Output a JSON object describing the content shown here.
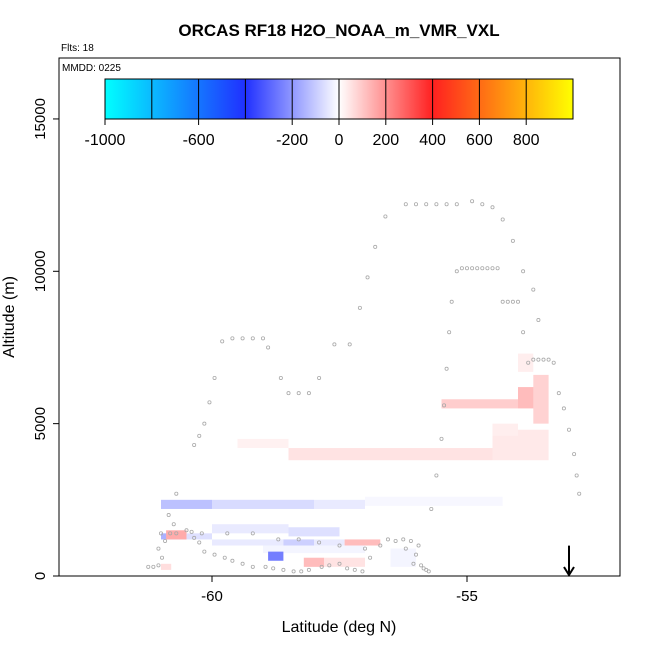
{
  "chart_data": {
    "type": "heatmap",
    "title": "ORCAS RF18 H2O_NOAA_m_VMR_VXL",
    "flights_label": "Flts: 18",
    "date_label": "MMDD: 0225",
    "xlabel": "Latitude (deg N)",
    "ylabel": "Altitude (m)",
    "xlim": [
      -63,
      -52
    ],
    "ylim": [
      0,
      17000
    ],
    "x_ticks": [
      {
        "value": -60,
        "label": "-60"
      },
      {
        "value": -55,
        "label": "-55"
      }
    ],
    "y_ticks": [
      {
        "value": 0,
        "label": "0"
      },
      {
        "value": 5000,
        "label": "5000"
      },
      {
        "value": 10000,
        "label": "10000"
      },
      {
        "value": 15000,
        "label": "15000"
      }
    ],
    "colorbar": {
      "range": [
        -1000,
        1000
      ],
      "stops": [
        {
          "value": -1000,
          "color": "#00ffff"
        },
        {
          "value": -400,
          "color": "#2030ff"
        },
        {
          "value": 0,
          "color": "#ffffff"
        },
        {
          "value": 400,
          "color": "#ff2020"
        },
        {
          "value": 1000,
          "color": "#ffff00"
        }
      ],
      "dividers": [
        -800,
        -600,
        -400,
        -200,
        0,
        200,
        400,
        600,
        800
      ],
      "tick_labels": [
        {
          "value": -1000,
          "label": "-1000"
        },
        {
          "value": -600,
          "label": "-600"
        },
        {
          "value": -200,
          "label": "-200"
        },
        {
          "value": 0,
          "label": "0"
        },
        {
          "value": 200,
          "label": "200"
        },
        {
          "value": 400,
          "label": "400"
        },
        {
          "value": 600,
          "label": "600"
        },
        {
          "value": 800,
          "label": "800"
        }
      ]
    },
    "cells": [
      {
        "lat0": -61.0,
        "lat1": -60.0,
        "alt0": 2200,
        "alt1": 2500,
        "value": -120
      },
      {
        "lat0": -60.0,
        "lat1": -58.0,
        "alt0": 2200,
        "alt1": 2500,
        "value": -70
      },
      {
        "lat0": -58.0,
        "lat1": -57.0,
        "alt0": 2200,
        "alt1": 2500,
        "value": -40
      },
      {
        "lat0": -57.0,
        "lat1": -54.3,
        "alt0": 2300,
        "alt1": 2600,
        "value": -15
      },
      {
        "lat0": -60.0,
        "lat1": -58.5,
        "alt0": 1400,
        "alt1": 1700,
        "value": -40
      },
      {
        "lat0": -58.5,
        "lat1": -57.5,
        "alt0": 1300,
        "alt1": 1600,
        "value": -60
      },
      {
        "lat0": -61.0,
        "lat1": -60.5,
        "alt0": 1200,
        "alt1": 1400,
        "value": -150
      },
      {
        "lat0": -60.9,
        "lat1": -60.5,
        "alt0": 1200,
        "alt1": 1500,
        "value": 150
      },
      {
        "lat0": -60.5,
        "lat1": -60.0,
        "alt0": 1200,
        "alt1": 1400,
        "value": -60
      },
      {
        "lat0": -60.0,
        "lat1": -58.6,
        "alt0": 1000,
        "alt1": 1200,
        "value": -40
      },
      {
        "lat0": -58.6,
        "lat1": -58.0,
        "alt0": 1000,
        "alt1": 1200,
        "value": -90
      },
      {
        "lat0": -58.0,
        "lat1": -57.4,
        "alt0": 1000,
        "alt1": 1200,
        "value": -40
      },
      {
        "lat0": -57.4,
        "lat1": -56.7,
        "alt0": 1000,
        "alt1": 1200,
        "value": 120
      },
      {
        "lat0": -59.0,
        "lat1": -57.0,
        "alt0": 750,
        "alt1": 1000,
        "value": -20
      },
      {
        "lat0": -58.9,
        "lat1": -58.6,
        "alt0": 500,
        "alt1": 800,
        "value": -250
      },
      {
        "lat0": -58.2,
        "lat1": -57.8,
        "alt0": 300,
        "alt1": 600,
        "value": 120
      },
      {
        "lat0": -57.8,
        "lat1": -57.0,
        "alt0": 300,
        "alt1": 600,
        "value": 50
      },
      {
        "lat0": -61.0,
        "lat1": -60.8,
        "alt0": 200,
        "alt1": 400,
        "value": 60
      },
      {
        "lat0": -56.5,
        "lat1": -56.0,
        "alt0": 300,
        "alt1": 900,
        "value": -20
      },
      {
        "lat0": -58.5,
        "lat1": -54.5,
        "alt0": 3800,
        "alt1": 4200,
        "value": 50
      },
      {
        "lat0": -54.5,
        "lat1": -53.4,
        "alt0": 3800,
        "alt1": 4800,
        "value": 40
      },
      {
        "lat0": -59.5,
        "lat1": -58.5,
        "alt0": 4200,
        "alt1": 4500,
        "value": 25
      },
      {
        "lat0": -55.5,
        "lat1": -54.0,
        "alt0": 5500,
        "alt1": 5800,
        "value": 90
      },
      {
        "lat0": -54.0,
        "lat1": -53.5,
        "alt0": 5500,
        "alt1": 6200,
        "value": 120
      },
      {
        "lat0": -53.7,
        "lat1": -53.4,
        "alt0": 5000,
        "alt1": 6600,
        "value": 80
      },
      {
        "lat0": -54.0,
        "lat1": -53.7,
        "alt0": 6700,
        "alt1": 7300,
        "value": 30
      },
      {
        "lat0": -54.5,
        "lat1": -54.0,
        "alt0": 4600,
        "alt1": 5000,
        "value": 30
      }
    ],
    "track_points": [
      [
        -61.25,
        300
      ],
      [
        -61.15,
        300
      ],
      [
        -61.05,
        350
      ],
      [
        -60.98,
        600
      ],
      [
        -61.05,
        900
      ],
      [
        -60.92,
        1150
      ],
      [
        -60.82,
        1400
      ],
      [
        -60.75,
        1700
      ],
      [
        -60.85,
        2000
      ],
      [
        -60.7,
        2700
      ],
      [
        -60.5,
        1500
      ],
      [
        -60.4,
        1450
      ],
      [
        -60.35,
        1250
      ],
      [
        -60.25,
        1100
      ],
      [
        -60.15,
        800
      ],
      [
        -59.95,
        700
      ],
      [
        -59.75,
        600
      ],
      [
        -59.6,
        500
      ],
      [
        -59.4,
        400
      ],
      [
        -59.2,
        300
      ],
      [
        -58.95,
        300
      ],
      [
        -58.8,
        250
      ],
      [
        -58.6,
        200
      ],
      [
        -58.4,
        150
      ],
      [
        -58.25,
        150
      ],
      [
        -58.1,
        200
      ],
      [
        -57.85,
        300
      ],
      [
        -57.7,
        350
      ],
      [
        -57.5,
        400
      ],
      [
        -57.35,
        250
      ],
      [
        -57.2,
        200
      ],
      [
        -57.05,
        150
      ],
      [
        -56.9,
        600
      ],
      [
        -56.7,
        1000
      ],
      [
        -56.55,
        1200
      ],
      [
        -56.4,
        1150
      ],
      [
        -56.25,
        1200
      ],
      [
        -56.1,
        1150
      ],
      [
        -55.95,
        1000
      ],
      [
        -56.2,
        900
      ],
      [
        -56.0,
        700
      ],
      [
        -56.05,
        400
      ],
      [
        -55.9,
        350
      ],
      [
        -55.85,
        250
      ],
      [
        -55.8,
        200
      ],
      [
        -55.75,
        150
      ],
      [
        -55.7,
        2200
      ],
      [
        -55.6,
        3300
      ],
      [
        -55.5,
        4500
      ],
      [
        -55.45,
        5600
      ],
      [
        -55.4,
        6800
      ],
      [
        -55.35,
        8000
      ],
      [
        -55.3,
        9000
      ],
      [
        -55.2,
        10000
      ],
      [
        -55.1,
        10100
      ],
      [
        -55.0,
        10100
      ],
      [
        -54.9,
        10100
      ],
      [
        -54.8,
        10100
      ],
      [
        -54.7,
        10100
      ],
      [
        -54.6,
        10100
      ],
      [
        -54.5,
        10100
      ],
      [
        -54.4,
        10100
      ],
      [
        -54.3,
        9000
      ],
      [
        -54.2,
        9000
      ],
      [
        -54.1,
        9000
      ],
      [
        -54.0,
        9000
      ],
      [
        -53.9,
        8000
      ],
      [
        -53.8,
        7000
      ],
      [
        -53.7,
        7100
      ],
      [
        -53.6,
        7100
      ],
      [
        -53.5,
        7100
      ],
      [
        -53.4,
        7100
      ],
      [
        -53.3,
        7000
      ],
      [
        -53.2,
        6000
      ],
      [
        -53.1,
        5500
      ],
      [
        -53.0,
        4800
      ],
      [
        -52.9,
        4000
      ],
      [
        -52.85,
        3300
      ],
      [
        -52.8,
        2700
      ],
      [
        -54.9,
        12300
      ],
      [
        -54.7,
        12200
      ],
      [
        -54.5,
        12100
      ],
      [
        -54.3,
        11700
      ],
      [
        -54.1,
        11000
      ],
      [
        -53.9,
        10000
      ],
      [
        -53.7,
        9400
      ],
      [
        -53.6,
        8400
      ],
      [
        -56.2,
        12200
      ],
      [
        -56.0,
        12200
      ],
      [
        -55.8,
        12200
      ],
      [
        -55.6,
        12200
      ],
      [
        -55.4,
        12200
      ],
      [
        -55.2,
        12200
      ],
      [
        -56.6,
        11800
      ],
      [
        -56.8,
        10800
      ],
      [
        -56.95,
        9800
      ],
      [
        -57.1,
        8800
      ],
      [
        -57.3,
        7600
      ],
      [
        -57.6,
        7600
      ],
      [
        -57.9,
        6500
      ],
      [
        -58.1,
        6000
      ],
      [
        -58.3,
        6000
      ],
      [
        -58.5,
        6000
      ],
      [
        -58.65,
        6500
      ],
      [
        -58.9,
        7500
      ],
      [
        -59.0,
        7800
      ],
      [
        -59.2,
        7800
      ],
      [
        -59.4,
        7800
      ],
      [
        -59.6,
        7800
      ],
      [
        -59.8,
        7700
      ],
      [
        -59.95,
        6500
      ],
      [
        -60.05,
        5700
      ],
      [
        -60.15,
        5000
      ],
      [
        -60.25,
        4600
      ],
      [
        -60.35,
        4300
      ],
      [
        -61.0,
        1400
      ],
      [
        -60.7,
        1400
      ],
      [
        -60.2,
        1400
      ],
      [
        -59.7,
        1400
      ],
      [
        -59.2,
        1400
      ],
      [
        -58.7,
        1200
      ],
      [
        -58.3,
        1200
      ],
      [
        -57.9,
        1100
      ],
      [
        -57.5,
        1000
      ],
      [
        -57.0,
        900
      ]
    ],
    "annotation": {
      "type": "arrow",
      "lat": -53.0,
      "from_alt": 800,
      "to_alt": 0
    }
  }
}
